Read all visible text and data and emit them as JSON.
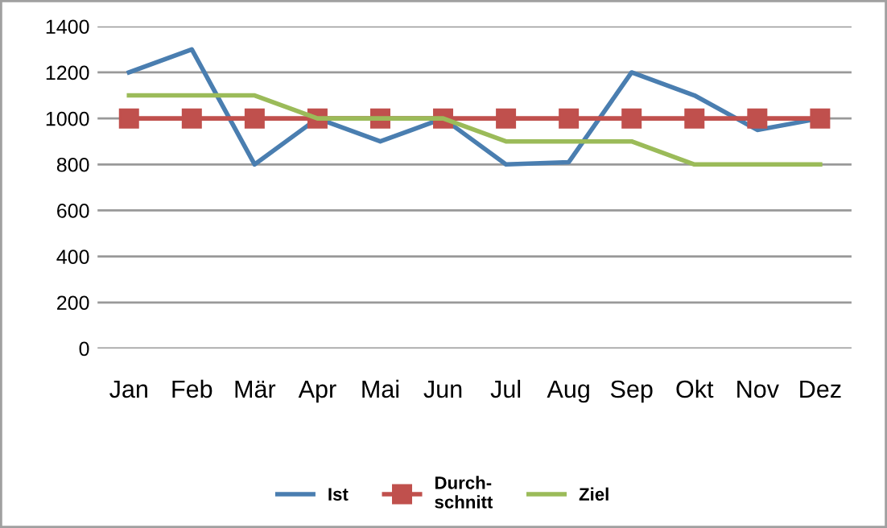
{
  "chart_data": {
    "type": "line",
    "categories": [
      "Jan",
      "Feb",
      "Mär",
      "Apr",
      "Mai",
      "Jun",
      "Jul",
      "Aug",
      "Sep",
      "Okt",
      "Nov",
      "Dez"
    ],
    "series": [
      {
        "name": "Ist",
        "color": "#4a7eb0",
        "marker": "none",
        "values": [
          1200,
          1300,
          800,
          1000,
          900,
          1000,
          800,
          810,
          1200,
          1100,
          950,
          1000
        ]
      },
      {
        "name": "Durch-\nschnitt",
        "color": "#c0504d",
        "marker": "square",
        "values": [
          1000,
          1000,
          1000,
          1000,
          1000,
          1000,
          1000,
          1000,
          1000,
          1000,
          1000,
          1000
        ]
      },
      {
        "name": "Ziel",
        "color": "#9bbb59",
        "marker": "none",
        "values": [
          1100,
          1100,
          1100,
          1000,
          1000,
          1000,
          900,
          900,
          900,
          800,
          800,
          800
        ]
      }
    ],
    "ylim": [
      0,
      1400
    ],
    "yticks": [
      0,
      200,
      400,
      600,
      800,
      1000,
      1200,
      1400
    ],
    "grid": "y",
    "legend": "bottom",
    "line_style": "solid"
  }
}
